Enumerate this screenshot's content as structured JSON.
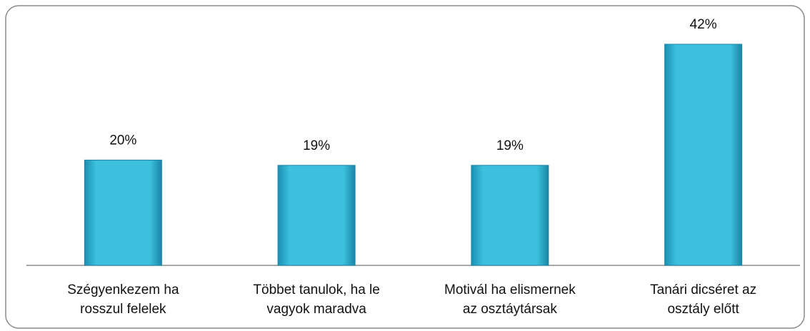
{
  "chart_data": {
    "type": "bar",
    "categories": [
      "Szégyenkezem ha\nrosszul felelek",
      "Többet tanulok, ha le\nvagyok maradva",
      "Motivál ha elismernek\naz osztáytársak",
      "Tanári dicséret az\nosztály előtt"
    ],
    "values": [
      20,
      19,
      19,
      42
    ],
    "value_labels": [
      "20%",
      "19%",
      "19%",
      "42%"
    ],
    "color": "#3cc0de"
  }
}
